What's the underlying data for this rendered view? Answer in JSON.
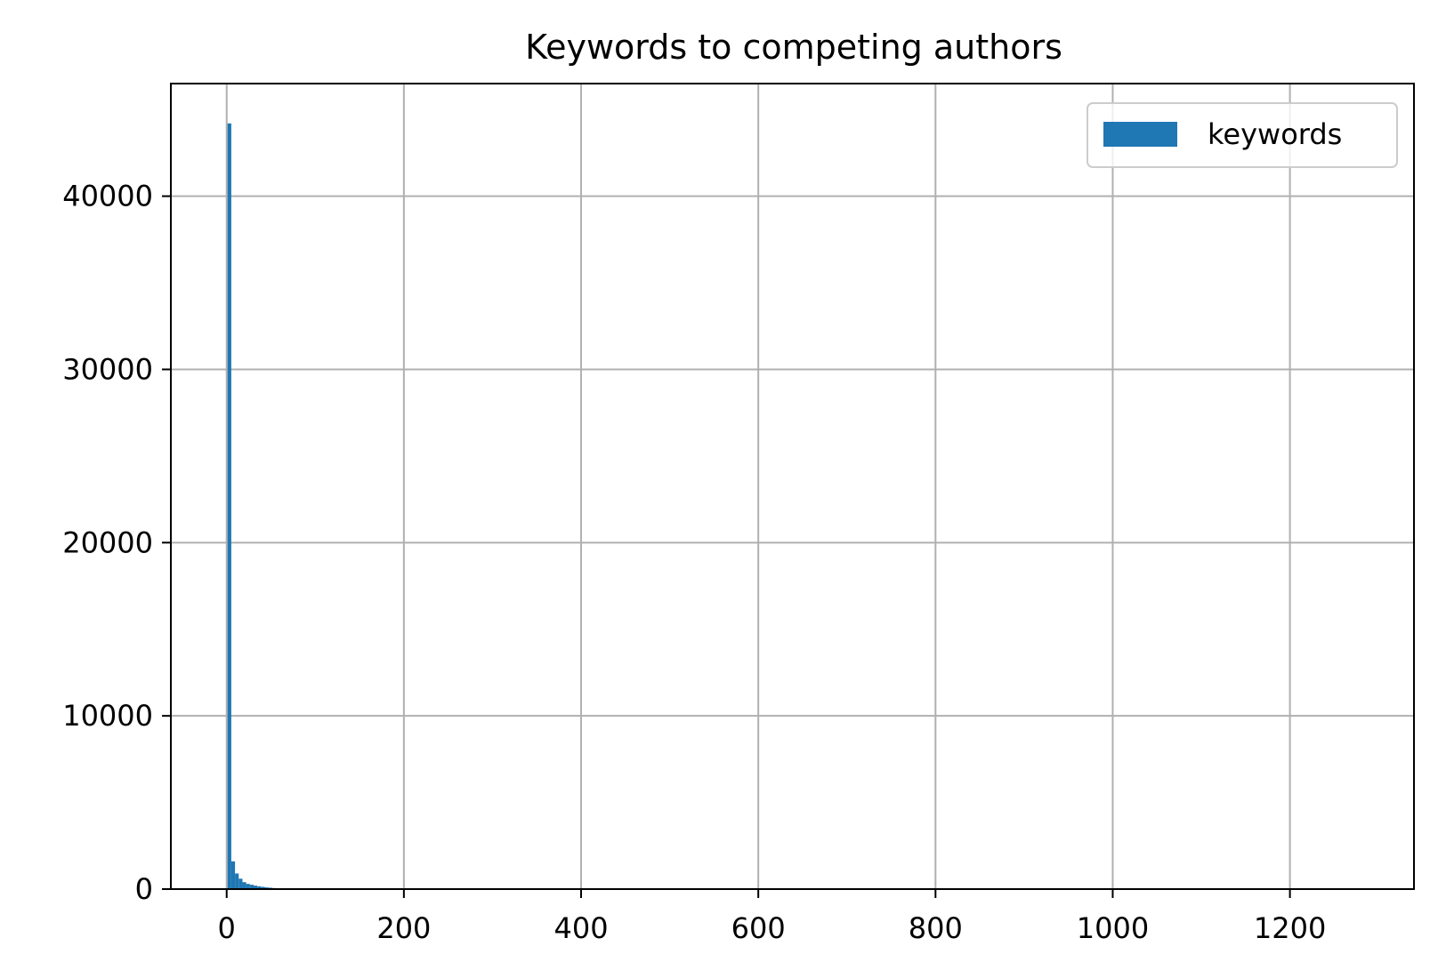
{
  "chart_data": {
    "type": "bar",
    "title": "Keywords to competing authors",
    "xlabel": "",
    "ylabel": "",
    "xlim": [
      -63,
      1340
    ],
    "ylim": [
      0,
      46500
    ],
    "xticks": [
      0,
      200,
      400,
      600,
      800,
      1000,
      1200
    ],
    "yticks": [
      0,
      10000,
      20000,
      30000,
      40000
    ],
    "grid": true,
    "legend": {
      "placement": "top-right",
      "entries": [
        "keywords"
      ]
    },
    "series": [
      {
        "name": "keywords",
        "color": "#1f77b4",
        "bin_width": 4.2,
        "bins": [
          {
            "x": 1,
            "value": 44200
          },
          {
            "x": 5.2,
            "value": 1600
          },
          {
            "x": 9.4,
            "value": 900
          },
          {
            "x": 13.6,
            "value": 600
          },
          {
            "x": 17.8,
            "value": 400
          },
          {
            "x": 22,
            "value": 300
          },
          {
            "x": 26.2,
            "value": 250
          },
          {
            "x": 30.4,
            "value": 200
          },
          {
            "x": 34.6,
            "value": 160
          },
          {
            "x": 38.8,
            "value": 130
          },
          {
            "x": 43,
            "value": 100
          },
          {
            "x": 47.2,
            "value": 80
          },
          {
            "x": 51.4,
            "value": 60
          },
          {
            "x": 55.6,
            "value": 45
          },
          {
            "x": 59.8,
            "value": 35
          },
          {
            "x": 64,
            "value": 25
          },
          {
            "x": 68.2,
            "value": 20
          },
          {
            "x": 72.4,
            "value": 15
          },
          {
            "x": 76.6,
            "value": 12
          },
          {
            "x": 80.8,
            "value": 10
          }
        ]
      }
    ]
  }
}
